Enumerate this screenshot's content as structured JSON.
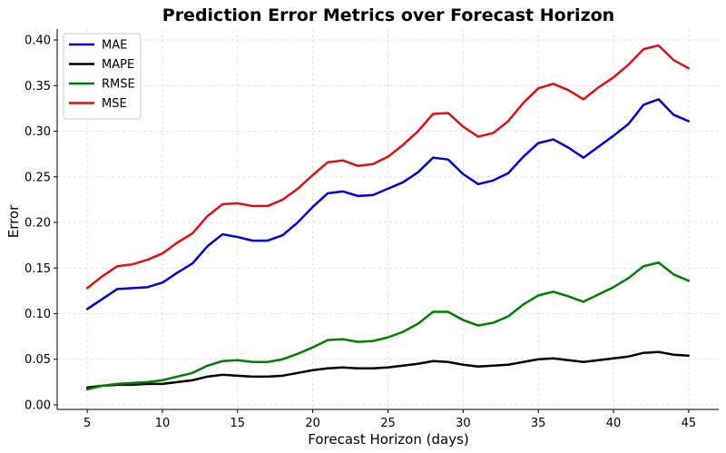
{
  "chart_data": {
    "type": "line",
    "title": "Prediction Error Metrics over Forecast Horizon",
    "xlabel": "Forecast Horizon (days)",
    "ylabel": "Error",
    "xlim": [
      3.0,
      47.0
    ],
    "ylim": [
      -0.005,
      0.412
    ],
    "x_ticks": [
      5,
      10,
      15,
      20,
      25,
      30,
      35,
      40,
      45
    ],
    "y_ticks": [
      0.0,
      0.05,
      0.1,
      0.15,
      0.2,
      0.25,
      0.3,
      0.35,
      0.4
    ],
    "grid": true,
    "legend_position": "top-left",
    "x": [
      5,
      6,
      7,
      8,
      9,
      10,
      11,
      12,
      13,
      14,
      15,
      16,
      17,
      18,
      19,
      20,
      21,
      22,
      23,
      24,
      25,
      26,
      27,
      28,
      29,
      30,
      31,
      32,
      33,
      34,
      35,
      36,
      37,
      38,
      39,
      40,
      41,
      42,
      43,
      44,
      45
    ],
    "series": [
      {
        "name": "MAE",
        "color": "#0000dd",
        "values": [
          0.105,
          0.116,
          0.127,
          0.128,
          0.129,
          0.134,
          0.145,
          0.155,
          0.174,
          0.187,
          0.184,
          0.18,
          0.18,
          0.186,
          0.2,
          0.217,
          0.232,
          0.234,
          0.229,
          0.23,
          0.237,
          0.244,
          0.255,
          0.271,
          0.269,
          0.253,
          0.242,
          0.246,
          0.254,
          0.272,
          0.287,
          0.291,
          0.282,
          0.271,
          0.283,
          0.295,
          0.308,
          0.329,
          0.335,
          0.318,
          0.311
        ]
      },
      {
        "name": "MAPE",
        "color": "#000000",
        "values": [
          0.019,
          0.021,
          0.022,
          0.022,
          0.023,
          0.023,
          0.025,
          0.027,
          0.031,
          0.033,
          0.032,
          0.031,
          0.031,
          0.032,
          0.035,
          0.038,
          0.04,
          0.041,
          0.04,
          0.04,
          0.041,
          0.043,
          0.045,
          0.048,
          0.047,
          0.044,
          0.042,
          0.043,
          0.044,
          0.047,
          0.05,
          0.051,
          0.049,
          0.047,
          0.049,
          0.051,
          0.053,
          0.057,
          0.058,
          0.055,
          0.054
        ]
      },
      {
        "name": "RMSE",
        "color": "#008000",
        "values": [
          0.017,
          0.021,
          0.023,
          0.024,
          0.025,
          0.027,
          0.031,
          0.035,
          0.043,
          0.048,
          0.049,
          0.047,
          0.047,
          0.05,
          0.056,
          0.063,
          0.071,
          0.072,
          0.069,
          0.07,
          0.074,
          0.08,
          0.089,
          0.102,
          0.102,
          0.093,
          0.087,
          0.09,
          0.097,
          0.11,
          0.12,
          0.124,
          0.119,
          0.113,
          0.121,
          0.129,
          0.139,
          0.152,
          0.156,
          0.143,
          0.136
        ]
      },
      {
        "name": "MSE",
        "color": "#e01010",
        "values": [
          0.128,
          0.141,
          0.152,
          0.154,
          0.159,
          0.166,
          0.178,
          0.188,
          0.207,
          0.22,
          0.221,
          0.218,
          0.218,
          0.225,
          0.237,
          0.252,
          0.266,
          0.268,
          0.262,
          0.264,
          0.272,
          0.285,
          0.3,
          0.319,
          0.32,
          0.305,
          0.294,
          0.298,
          0.311,
          0.331,
          0.347,
          0.352,
          0.345,
          0.335,
          0.348,
          0.359,
          0.373,
          0.39,
          0.394,
          0.378,
          0.369
        ]
      }
    ]
  }
}
